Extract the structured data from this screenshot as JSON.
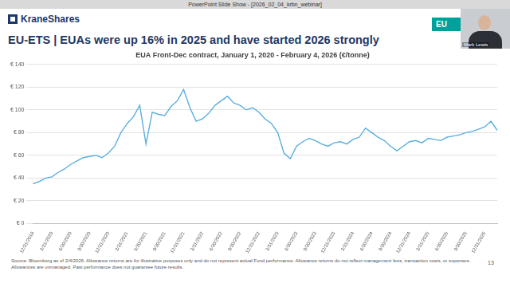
{
  "page": {
    "window_title": "PowerPoint Slide Show - [2026_02_04_krbn_webinar]",
    "logo": "KraneShares",
    "title": "EU-ETS | EUAs were up 16% in 2025 and have started 2026 strongly",
    "tab": "EU",
    "presenter": "Mark Lewis",
    "footnote": "Source: Bloomberg as of 2/4/2026. Allowance returns are for illustrative purposes only and do not represent actual Fund performance. Allowance returns do not reflect management fees, transaction costs, or expenses. Allowances are unmanaged. Past performance does not guarantee future results.",
    "page_number": 13
  },
  "chart_data": {
    "type": "line",
    "title": "EUA Front-Dec contract, January 1, 2020 - February 4, 2026 (€/tonne)",
    "categories": [
      "12/31/2019",
      null,
      null,
      "3/31/2020",
      null,
      null,
      "6/30/2020",
      null,
      null,
      "9/30/2020",
      null,
      null,
      "12/31/2020",
      null,
      null,
      "3/31/2021",
      null,
      null,
      "6/30/2021",
      null,
      null,
      "9/30/2021",
      null,
      null,
      "12/31/2021",
      null,
      null,
      "3/31/2022",
      null,
      null,
      "6/30/2022",
      null,
      null,
      "9/30/2022",
      null,
      null,
      "12/31/2022",
      null,
      null,
      "3/31/2023",
      null,
      null,
      "6/30/2023",
      null,
      null,
      "9/30/2023",
      null,
      null,
      "12/31/2023",
      null,
      null,
      "3/31/2024",
      null,
      null,
      "6/30/2024",
      null,
      null,
      "9/30/2024",
      null,
      null,
      "12/31/2024",
      null,
      null,
      "3/31/2025",
      null,
      null,
      "6/30/2025",
      null,
      null,
      "9/30/2025",
      null,
      null,
      "12/31/2025",
      null,
      null
    ],
    "values": [
      35,
      37,
      40,
      41,
      45,
      48,
      52,
      55,
      58,
      59,
      60,
      58,
      62,
      68,
      80,
      88,
      94,
      104,
      70,
      98,
      96,
      95,
      103,
      108,
      118,
      102,
      90,
      92,
      97,
      104,
      108,
      112,
      106,
      104,
      100,
      102,
      98,
      92,
      88,
      80,
      62,
      57,
      68,
      72,
      75,
      73,
      70,
      68,
      71,
      72,
      70,
      74,
      76,
      84,
      80,
      76,
      73,
      68,
      64,
      68,
      72,
      73,
      71,
      75,
      74,
      73,
      76,
      77,
      78,
      80,
      81,
      83,
      85,
      90,
      82
    ],
    "color": "#5aaee0",
    "ylim": [
      0,
      140
    ],
    "yticks": [
      {
        "value": 0,
        "label": "€ 0"
      },
      {
        "value": 20,
        "label": "€ 20"
      },
      {
        "value": 40,
        "label": "€ 40"
      },
      {
        "value": 60,
        "label": "€ 60"
      },
      {
        "value": 80,
        "label": "€ 80"
      },
      {
        "value": 100,
        "label": "€ 100"
      },
      {
        "value": 120,
        "label": "€ 120"
      },
      {
        "value": 140,
        "label": "€ 140"
      }
    ],
    "grid": true
  }
}
